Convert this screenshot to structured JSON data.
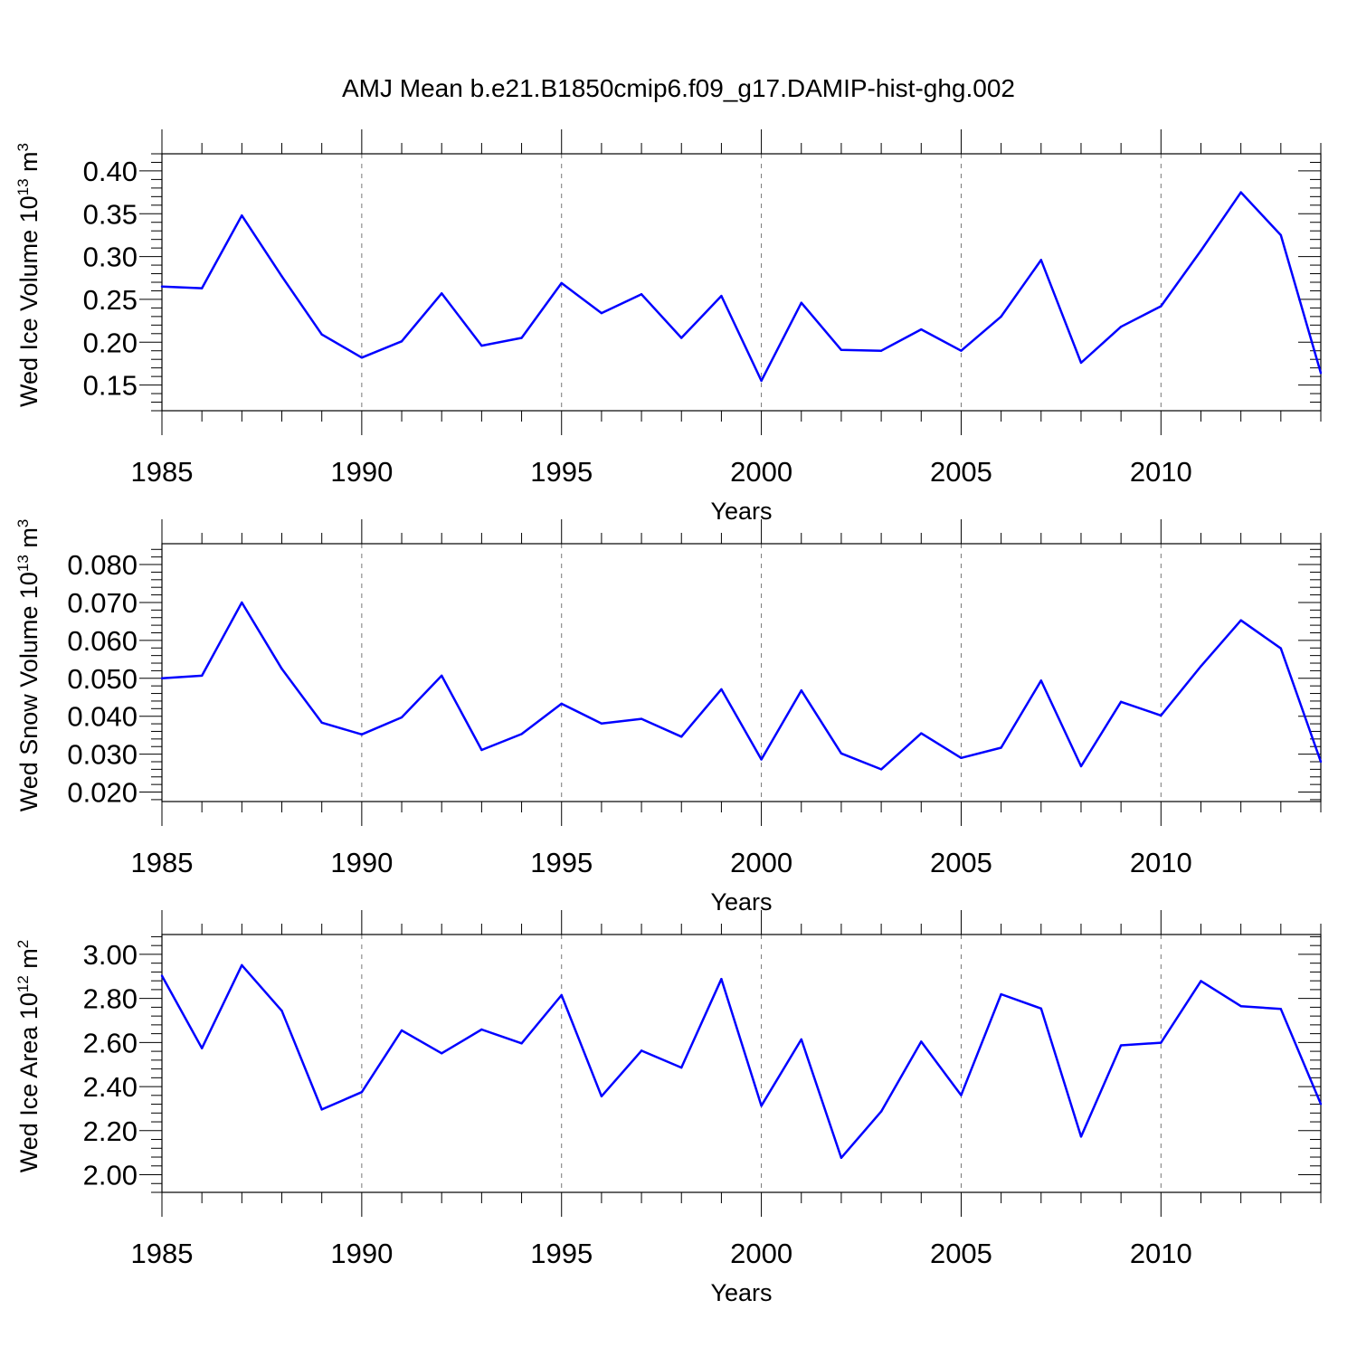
{
  "title": "AMJ Mean b.e21.B1850cmip6.f09_g17.DAMIP-hist-ghg.002",
  "colors": {
    "series": "#0000ff",
    "axis": "#000000",
    "grid": "#777777"
  },
  "chart_data": [
    {
      "type": "line",
      "xlabel": "Years",
      "ylabel": "Wed Ice Volume 10",
      "ylabel_exp": "13",
      "ylabel_unit": " m",
      "ylabel_unit_exp": "3",
      "xlim": [
        1985,
        2014
      ],
      "ylim": [
        0.12,
        0.42
      ],
      "x_ticks": [
        1985,
        1990,
        1995,
        2000,
        2005,
        2010
      ],
      "y_ticks": [
        "0.15",
        "0.20",
        "0.25",
        "0.30",
        "0.35",
        "0.40"
      ],
      "y_tick_values": [
        0.15,
        0.2,
        0.25,
        0.3,
        0.35,
        0.4
      ],
      "grid": "vertical dashed at major x ticks",
      "x": [
        1985,
        1986,
        1987,
        1988,
        1989,
        1990,
        1991,
        1992,
        1993,
        1994,
        1995,
        1996,
        1997,
        1998,
        1999,
        2000,
        2001,
        2002,
        2003,
        2004,
        2005,
        2006,
        2007,
        2008,
        2009,
        2010,
        2011,
        2012,
        2013,
        2014
      ],
      "values": [
        0.265,
        0.263,
        0.348,
        0.277,
        0.209,
        0.182,
        0.201,
        0.257,
        0.196,
        0.205,
        0.269,
        0.234,
        0.256,
        0.205,
        0.254,
        0.155,
        0.246,
        0.191,
        0.19,
        0.215,
        0.19,
        0.23,
        0.296,
        0.176,
        0.218,
        0.242,
        0.307,
        0.375,
        0.325,
        0.164
      ]
    },
    {
      "type": "line",
      "xlabel": "Years",
      "ylabel": "Wed Snow Volume 10",
      "ylabel_exp": "13",
      "ylabel_unit": " m",
      "ylabel_unit_exp": "3",
      "xlim": [
        1985,
        2014
      ],
      "ylim": [
        0.0175,
        0.0855
      ],
      "x_ticks": [
        1985,
        1990,
        1995,
        2000,
        2005,
        2010
      ],
      "y_ticks": [
        "0.020",
        "0.030",
        "0.040",
        "0.050",
        "0.060",
        "0.070",
        "0.080"
      ],
      "y_tick_values": [
        0.02,
        0.03,
        0.04,
        0.05,
        0.06,
        0.07,
        0.08
      ],
      "grid": "vertical dashed at major x ticks",
      "x": [
        1985,
        1986,
        1987,
        1988,
        1989,
        1990,
        1991,
        1992,
        1993,
        1994,
        1995,
        1996,
        1997,
        1998,
        1999,
        2000,
        2001,
        2002,
        2003,
        2004,
        2005,
        2006,
        2007,
        2008,
        2009,
        2010,
        2011,
        2012,
        2013,
        2014
      ],
      "values": [
        0.05,
        0.0507,
        0.07,
        0.0525,
        0.0383,
        0.0352,
        0.0397,
        0.0507,
        0.0311,
        0.0353,
        0.0433,
        0.0381,
        0.0393,
        0.0346,
        0.0471,
        0.0286,
        0.0468,
        0.0302,
        0.026,
        0.0355,
        0.029,
        0.0317,
        0.0494,
        0.0268,
        0.0438,
        0.0402,
        0.0532,
        0.0653,
        0.0579,
        0.028
      ]
    },
    {
      "type": "line",
      "xlabel": "Years",
      "ylabel": "Wed Ice Area 10",
      "ylabel_exp": "12",
      "ylabel_unit": " m",
      "ylabel_unit_exp": "2",
      "xlim": [
        1985,
        2014
      ],
      "ylim": [
        1.92,
        3.09
      ],
      "x_ticks": [
        1985,
        1990,
        1995,
        2000,
        2005,
        2010
      ],
      "y_ticks": [
        "2.00",
        "2.20",
        "2.40",
        "2.60",
        "2.80",
        "3.00"
      ],
      "y_tick_values": [
        2.0,
        2.2,
        2.4,
        2.6,
        2.8,
        3.0
      ],
      "grid": "vertical dashed at major x ticks",
      "x": [
        1985,
        1986,
        1987,
        1988,
        1989,
        1990,
        1991,
        1992,
        1993,
        1994,
        1995,
        1996,
        1997,
        1998,
        1999,
        2000,
        2001,
        2002,
        2003,
        2004,
        2005,
        2006,
        2007,
        2008,
        2009,
        2010,
        2011,
        2012,
        2013,
        2014
      ],
      "values": [
        2.903,
        2.574,
        2.951,
        2.744,
        2.296,
        2.375,
        2.655,
        2.551,
        2.659,
        2.596,
        2.815,
        2.356,
        2.563,
        2.486,
        2.888,
        2.313,
        2.614,
        2.077,
        2.287,
        2.604,
        2.361,
        2.819,
        2.754,
        2.173,
        2.587,
        2.599,
        2.879,
        2.765,
        2.752,
        2.321
      ]
    }
  ]
}
